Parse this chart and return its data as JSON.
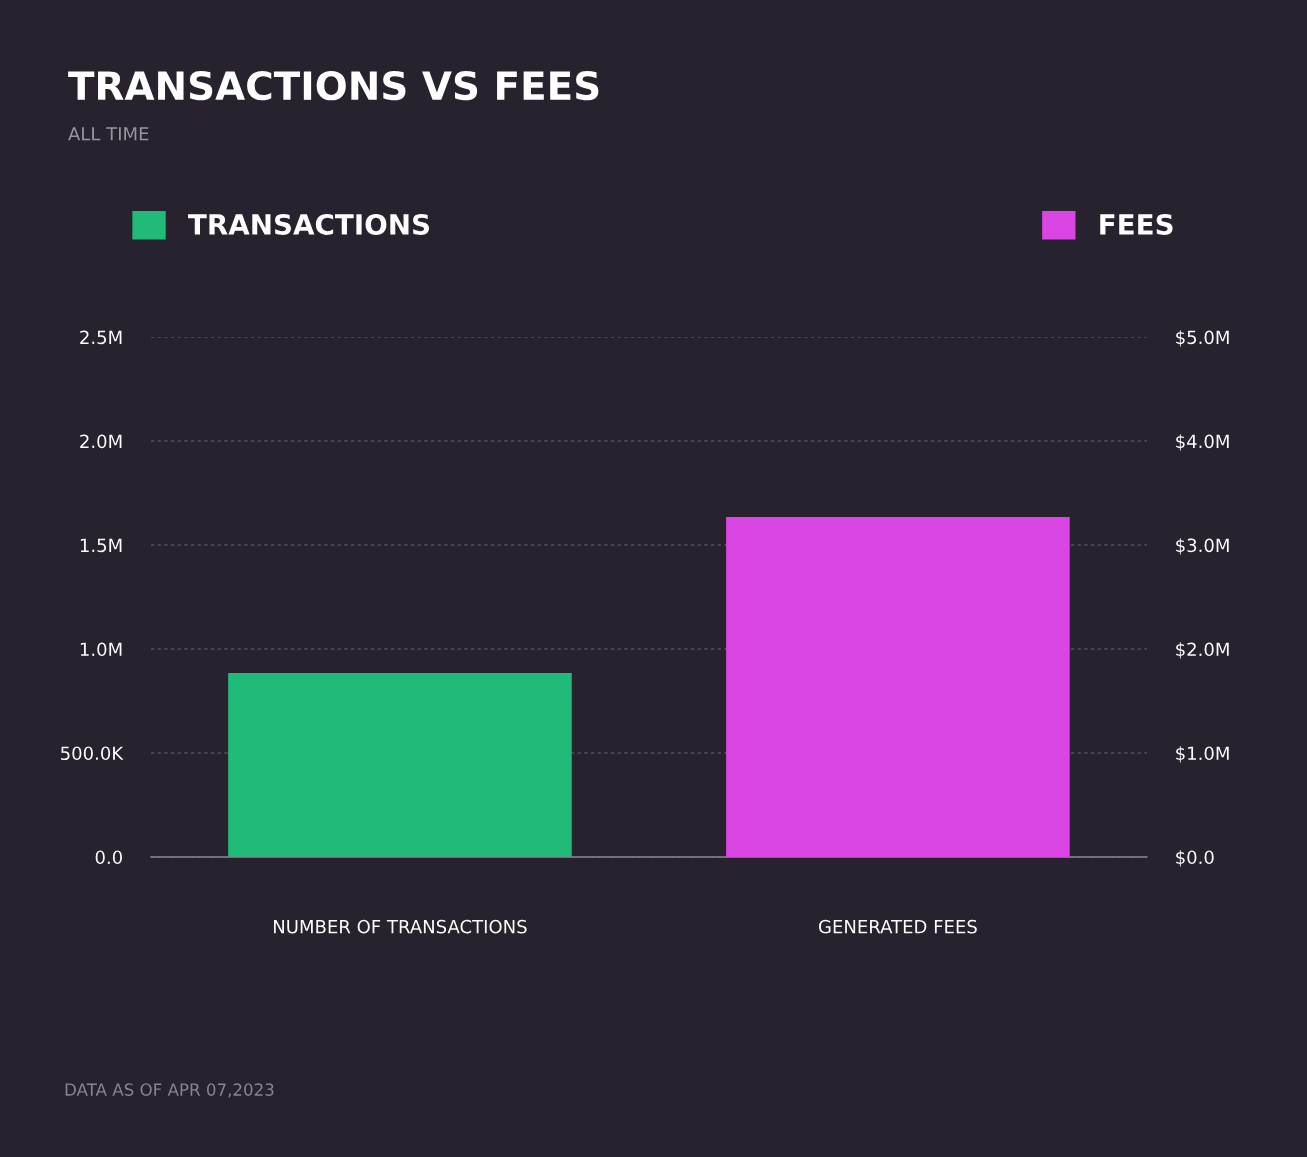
{
  "chart_data": {
    "type": "bar",
    "title": "TRANSACTIONS VS FEES",
    "subtitle": "ALL TIME",
    "categories": [
      "NUMBER OF TRANSACTIONS",
      "GENERATED FEES"
    ],
    "series": [
      {
        "name": "TRANSACTIONS",
        "color": "#21bb79",
        "values": [
          885000,
          null
        ]
      },
      {
        "name": "FEES",
        "color": "#d946e3",
        "values": [
          null,
          3270000
        ],
        "axis": "y2"
      }
    ],
    "ylim": [
      0,
      2500000
    ],
    "yticks": [
      {
        "value": 0,
        "label": "0.0"
      },
      {
        "value": 500000,
        "label": "500.0K"
      },
      {
        "value": 1000000,
        "label": "1.0M"
      },
      {
        "value": 1500000,
        "label": "1.5M"
      },
      {
        "value": 2000000,
        "label": "2.0M"
      },
      {
        "value": 2500000,
        "label": "2.5M"
      }
    ],
    "y2lim": [
      0,
      5000000
    ],
    "y2ticks": [
      {
        "value": 0,
        "label": "$0.0"
      },
      {
        "value": 1000000,
        "label": "$1.0M"
      },
      {
        "value": 2000000,
        "label": "$2.0M"
      },
      {
        "value": 3000000,
        "label": "$3.0M"
      },
      {
        "value": 4000000,
        "label": "$4.0M"
      },
      {
        "value": 5000000,
        "label": "$5.0M"
      }
    ],
    "grid": "y",
    "legend": "top",
    "annotations": [
      "DATA AS OF APR 07,2023"
    ]
  }
}
